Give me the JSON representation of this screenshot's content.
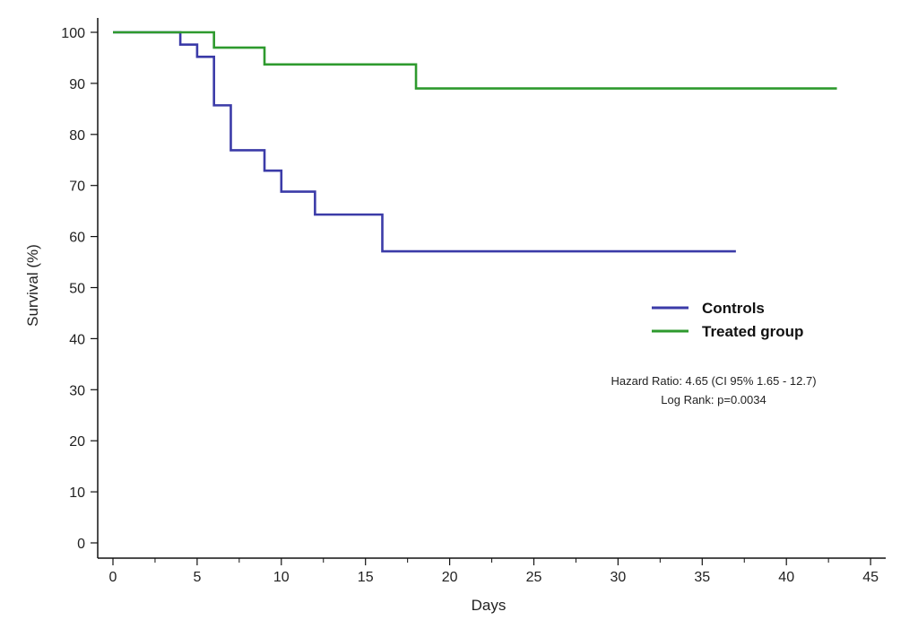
{
  "chart_data": {
    "type": "line",
    "xlabel": "Days",
    "ylabel": "Survival (%)",
    "xlim": [
      0,
      45
    ],
    "ylim": [
      0,
      100
    ],
    "x_ticks": [
      "0",
      "5",
      "10",
      "15",
      "20",
      "25",
      "30",
      "35",
      "40",
      "45"
    ],
    "y_ticks": [
      "0",
      "10",
      "20",
      "30",
      "40",
      "50",
      "60",
      "70",
      "80",
      "90",
      "100"
    ],
    "grid": false,
    "legend_position": "right",
    "step": true,
    "series": [
      {
        "name": "Controls",
        "color": "#3b3ba8",
        "x": [
          0,
          4,
          5,
          6,
          7,
          9,
          10,
          12,
          16,
          37
        ],
        "y": [
          100,
          97.6,
          95.2,
          85.7,
          76.9,
          72.9,
          68.8,
          64.3,
          57.1,
          57.1
        ]
      },
      {
        "name": "Treated group",
        "color": "#2e9a2e",
        "x": [
          0,
          6,
          9,
          18,
          43
        ],
        "y": [
          100,
          97,
          93.7,
          89,
          89
        ]
      }
    ],
    "annotations": [
      "Hazard Ratio: 4.65 (CI 95% 1.65 - 12.7)",
      "Log Rank: p=0.0034"
    ]
  }
}
